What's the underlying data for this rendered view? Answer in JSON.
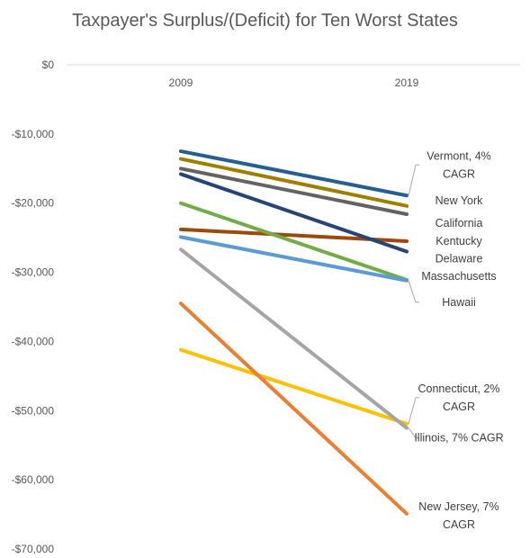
{
  "chart_data": {
    "type": "line",
    "title": "Taxpayer's Surplus/(Deficit) for Ten Worst States",
    "x": [
      "2009",
      "2019"
    ],
    "ylim": [
      -70000,
      0
    ],
    "y_ticks": [
      "$0",
      "-$10,000",
      "-$20,000",
      "-$30,000",
      "-$40,000",
      "-$50,000",
      "-$60,000",
      "-$70,000"
    ],
    "y_tick_values": [
      0,
      -10000,
      -20000,
      -30000,
      -40000,
      -50000,
      -60000,
      -70000
    ],
    "grid": "top axis line only",
    "legend": "none (inline labels at right)",
    "series": [
      {
        "name": "Vermont, 4% CAGR",
        "label_lines": [
          "Vermont, 4%",
          "CAGR"
        ],
        "values": [
          -12500,
          -18900
        ],
        "color": "#255E91",
        "label_offset": [
          0,
          -34
        ],
        "leader": true
      },
      {
        "name": "New York",
        "label_lines": [
          "New York"
        ],
        "values": [
          -13600,
          -20400
        ],
        "color": "#9E7F00",
        "label_offset": [
          0,
          -6
        ],
        "leader": false
      },
      {
        "name": "California",
        "label_lines": [
          "California"
        ],
        "values": [
          -15000,
          -21600
        ],
        "color": "#636363",
        "label_offset": [
          0,
          10
        ],
        "leader": false
      },
      {
        "name": "Kentucky",
        "label_lines": [
          "Kentucky"
        ],
        "values": [
          -23800,
          -25500
        ],
        "color": "#9E480E",
        "label_offset": [
          0,
          0
        ],
        "leader": false
      },
      {
        "name": "Delaware",
        "label_lines": [
          "Delaware"
        ],
        "values": [
          -15800,
          -27000
        ],
        "color": "#264478",
        "label_offset": [
          0,
          8
        ],
        "leader": false
      },
      {
        "name": "Massachusetts",
        "label_lines": [
          "Massachusetts"
        ],
        "values": [
          -20000,
          -31100
        ],
        "color": "#70AD47",
        "label_offset": [
          0,
          -4
        ],
        "leader": false
      },
      {
        "name": "Hawaii",
        "label_lines": [
          "Hawaii"
        ],
        "values": [
          -24900,
          -31200
        ],
        "color": "#5B9BD5",
        "label_offset": [
          0,
          24
        ],
        "leader": true
      },
      {
        "name": "Connecticut, 2% CAGR",
        "label_lines": [
          "Connecticut, 2%",
          "CAGR"
        ],
        "values": [
          -41200,
          -51900
        ],
        "color": "#FFC000",
        "label_offset": [
          0,
          -29
        ],
        "leader": true
      },
      {
        "name": "Illinois, 7% CAGR",
        "label_lines": [
          "Illinois, 7% CAGR"
        ],
        "values": [
          -26700,
          -52500
        ],
        "color": "#A5A5A5",
        "label_offset": [
          0,
          11
        ],
        "leader": true
      },
      {
        "name": "New Jersey, 7% CAGR",
        "label_lines": [
          "New Jersey, 7%",
          "CAGR"
        ],
        "values": [
          -34500,
          -64900
        ],
        "color": "#ED7D31",
        "label_offset": [
          0,
          2
        ],
        "leader": false
      }
    ]
  }
}
